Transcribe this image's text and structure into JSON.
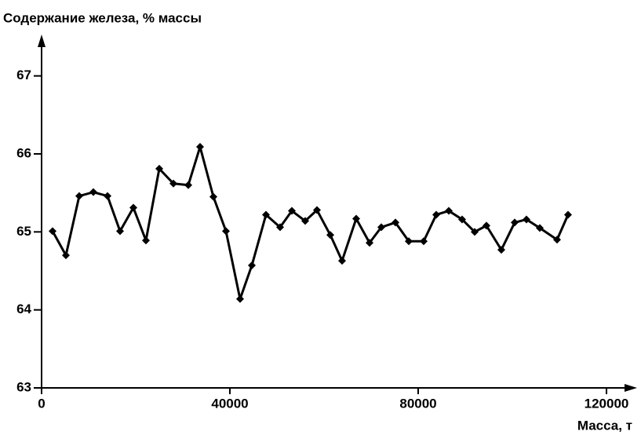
{
  "chart_data": {
    "type": "line",
    "y_label": "Содержание железа, % массы",
    "x_label": "Масса, т",
    "x": [
      2333,
      5167,
      8000,
      11000,
      14000,
      16667,
      19500,
      22167,
      25000,
      28000,
      31167,
      33667,
      36500,
      39167,
      42167,
      44667,
      47667,
      50667,
      53167,
      56000,
      58500,
      61333,
      63833,
      66833,
      69667,
      72167,
      75167,
      78000,
      81167,
      83833,
      86500,
      89333,
      92000,
      94500,
      97667,
      100500,
      103000,
      105833,
      109500,
      111833
    ],
    "values": [
      65.01,
      64.7,
      65.46,
      65.51,
      65.46,
      65.01,
      65.31,
      64.89,
      65.81,
      65.62,
      65.6,
      66.09,
      65.45,
      65.01,
      64.14,
      64.57,
      65.22,
      65.06,
      65.27,
      65.14,
      65.28,
      64.96,
      64.63,
      65.17,
      64.86,
      65.06,
      65.12,
      64.88,
      64.88,
      65.22,
      65.27,
      65.16,
      65.0,
      65.08,
      64.77,
      65.12,
      65.16,
      65.05,
      64.9,
      65.22
    ],
    "color": "#000000",
    "xlim": [
      0,
      126000
    ],
    "ylim": [
      63,
      67.5
    ],
    "xticks": [
      0,
      40000,
      80000,
      120000
    ],
    "yticks": [
      63,
      64,
      65,
      66,
      67
    ]
  }
}
